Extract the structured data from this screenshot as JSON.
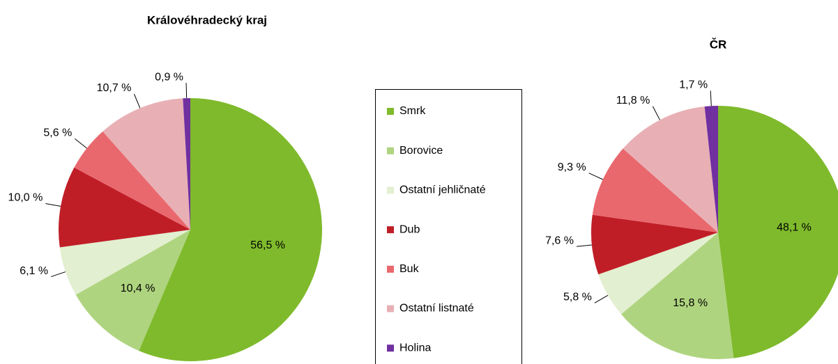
{
  "chart_data": [
    {
      "type": "pie",
      "title": "Královéhradecký kraj",
      "categories": [
        "Smrk",
        "Borovice",
        "Ostatní jehličnaté",
        "Dub",
        "Buk",
        "Ostatní listnaté",
        "Holina"
      ],
      "values": [
        56.5,
        10.4,
        6.1,
        10.0,
        5.6,
        10.7,
        0.9
      ],
      "value_labels": [
        "56,5 %",
        "10,4 %",
        "6,1 %",
        "10,0 %",
        "5,6 %",
        "10,7 %",
        "0,9 %"
      ],
      "colors": [
        "#7fba2c",
        "#afd47f",
        "#e2efd0",
        "#c01e27",
        "#e9686e",
        "#e8b0b5",
        "#7030a0"
      ]
    },
    {
      "type": "pie",
      "title": "ČR",
      "categories": [
        "Smrk",
        "Borovice",
        "Ostatní jehličnaté",
        "Dub",
        "Buk",
        "Ostatní listnaté",
        "Holina"
      ],
      "values": [
        48.1,
        15.8,
        5.8,
        7.6,
        9.3,
        11.8,
        1.7
      ],
      "value_labels": [
        "48,1 %",
        "15,8 %",
        "5,8 %",
        "7,6 %",
        "9,3 %",
        "11,8 %",
        "1,7 %"
      ],
      "colors": [
        "#7fba2c",
        "#afd47f",
        "#e2efd0",
        "#c01e27",
        "#e9686e",
        "#e8b0b5",
        "#7030a0"
      ]
    }
  ]
}
